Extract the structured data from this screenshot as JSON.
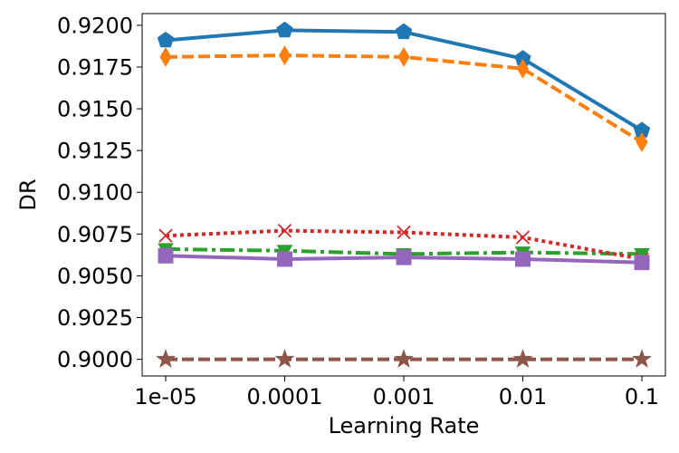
{
  "chart_data": {
    "type": "line",
    "xlabel": "Learning Rate",
    "ylabel": "DR",
    "categories": [
      "1e-05",
      "0.0001",
      "0.001",
      "0.01",
      "0.1"
    ],
    "ylim": [
      0.899,
      0.9207
    ],
    "yticks": [
      "0.9000",
      "0.9025",
      "0.9050",
      "0.9075",
      "0.9100",
      "0.9125",
      "0.9150",
      "0.9175",
      "0.9200"
    ],
    "grid": false,
    "series": [
      {
        "values": [
          0.9191,
          0.9197,
          0.9196,
          0.918,
          0.9137
        ],
        "color": "#1f77b4",
        "dash": "solid",
        "marker": "pentagon"
      },
      {
        "values": [
          0.9181,
          0.9182,
          0.9181,
          0.9174,
          0.913
        ],
        "color": "#ff7f0e",
        "dash": "dashed",
        "marker": "thin-diamond"
      },
      {
        "values": [
          0.9066,
          0.9065,
          0.9063,
          0.9064,
          0.9063
        ],
        "color": "#2ca02c",
        "dash": "dashdot",
        "marker": "triangle-down"
      },
      {
        "values": [
          0.9074,
          0.9077,
          0.9076,
          0.9073,
          0.906
        ],
        "color": "#d62728",
        "dash": "dotted",
        "marker": "x"
      },
      {
        "values": [
          0.9062,
          0.906,
          0.9061,
          0.906,
          0.9058
        ],
        "color": "#9467bd",
        "dash": "solid",
        "marker": "square"
      },
      {
        "values": [
          0.9,
          0.9,
          0.9,
          0.9,
          0.9
        ],
        "color": "#8c564b",
        "dash": "dashed",
        "marker": "star"
      }
    ]
  }
}
